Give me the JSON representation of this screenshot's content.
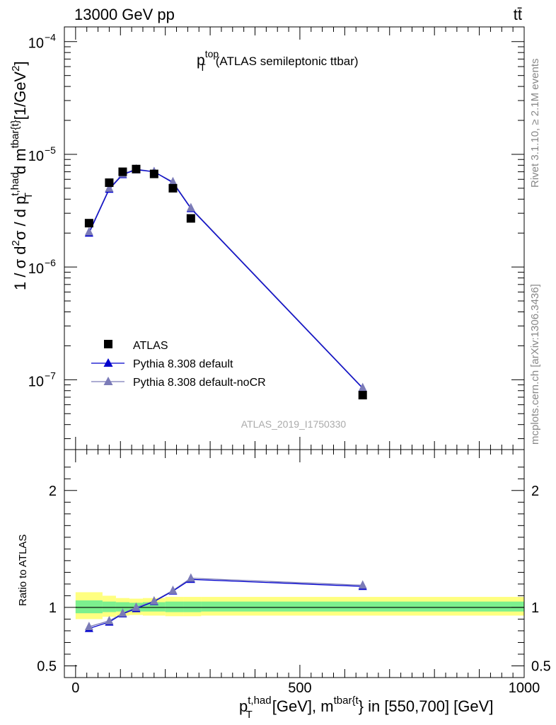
{
  "header": {
    "energy_label": "13000 GeV pp",
    "process_label": "tt̄"
  },
  "side": {
    "rivet_label": "Rivet 3.1.10, ≥ 2.1M events",
    "mcplots_label": "mcplots.cern.ch [arXiv:1306.3436]"
  },
  "chart_data": [
    {
      "type": "line",
      "title_main": "p",
      "title_sup": "top",
      "title_sub": "T",
      "title_rest": "(ATLAS semileptonic ttbar)",
      "watermark": "ATLAS_2019_I1750330",
      "ylabel": {
        "base": "1 / σ d",
        "s1": "2",
        "mid1": "σ / d p",
        "sup2": "t,had",
        "sub2": "T",
        "mid2": "d m",
        "sup3": "tbar{t}",
        "unit": "[1/GeV",
        "unit_sup": "2",
        "close": "]"
      },
      "yscale": "log",
      "xlim": [
        -25,
        1000
      ],
      "ylim": [
        2.4e-08,
        0.000135
      ],
      "y_tick_labels": [
        {
          "value": 1e-07,
          "mant": "10",
          "exp": "−7"
        },
        {
          "value": 1e-06,
          "mant": "10",
          "exp": "−6"
        },
        {
          "value": 1e-05,
          "mant": "10",
          "exp": "−5"
        },
        {
          "value": 0.0001,
          "mant": "10",
          "exp": "−4"
        }
      ],
      "legend": {
        "placement": "bottom-left",
        "entries": [
          "ATLAS",
          "Pythia 8.308 default",
          "Pythia 8.308 default-noCR"
        ]
      },
      "series": [
        {
          "name": "ATLAS",
          "marker": "square",
          "color": "#000000",
          "x": [
            30,
            75,
            105,
            135,
            175,
            217,
            257,
            640
          ],
          "y": [
            2.45e-06,
            5.6e-06,
            7e-06,
            7.4e-06,
            6.7e-06,
            5e-06,
            2.7e-06,
            7.3e-08
          ]
        },
        {
          "name": "Pythia 8.308 default",
          "marker": "triangle",
          "color": "#0000cc",
          "x": [
            30,
            75,
            105,
            135,
            175,
            217,
            257,
            640
          ],
          "y": [
            2e-06,
            4.9e-06,
            6.6e-06,
            7.3e-06,
            7e-06,
            5.6e-06,
            3.3e-06,
            8.4e-08
          ]
        },
        {
          "name": "Pythia 8.308 default-noCR",
          "marker": "triangle",
          "color": "#7b7bb8",
          "x": [
            30,
            75,
            105,
            135,
            175,
            217,
            257,
            640
          ],
          "y": [
            2.05e-06,
            5e-06,
            6.7e-06,
            7.4e-06,
            7e-06,
            5.7e-06,
            3.35e-06,
            8.5e-08
          ]
        }
      ]
    },
    {
      "type": "line",
      "ylabel": "Ratio to ATLAS",
      "xlabel": {
        "p": "p",
        "sup1": "t,had",
        "sub1": "T",
        "mid": "[GeV], m",
        "sup2": "tbar{t",
        "rest": "} in [550,700] [GeV]"
      },
      "xlim": [
        -25,
        1000
      ],
      "ylim": [
        0.4,
        2.35
      ],
      "x_tick_labels": [
        "0",
        "500",
        "1000"
      ],
      "x_tick_values": [
        0,
        500,
        1000
      ],
      "y_tick_labels": [
        "0.5",
        "1",
        "2"
      ],
      "y_tick_values": [
        0.5,
        1,
        2
      ],
      "reference_line": 1,
      "bands": {
        "yellow_color": "#ffff80",
        "green_color": "#7cf08e",
        "bins": [
          {
            "x0": 0,
            "x1": 60,
            "lo_y": 0.9,
            "hi_y": 1.13,
            "lo_g": 0.95,
            "hi_g": 1.06
          },
          {
            "x0": 60,
            "x1": 90,
            "lo_y": 0.92,
            "hi_y": 1.1,
            "lo_g": 0.96,
            "hi_g": 1.05
          },
          {
            "x0": 90,
            "x1": 120,
            "lo_y": 0.93,
            "hi_y": 1.08,
            "lo_g": 0.965,
            "hi_g": 1.045
          },
          {
            "x0": 120,
            "x1": 150,
            "lo_y": 0.935,
            "hi_y": 1.075,
            "lo_g": 0.965,
            "hi_g": 1.04
          },
          {
            "x0": 150,
            "x1": 200,
            "lo_y": 0.93,
            "hi_y": 1.08,
            "lo_g": 0.965,
            "hi_g": 1.045
          },
          {
            "x0": 200,
            "x1": 240,
            "lo_y": 0.925,
            "hi_y": 1.09,
            "lo_g": 0.96,
            "hi_g": 1.05
          },
          {
            "x0": 240,
            "x1": 280,
            "lo_y": 0.925,
            "hi_y": 1.09,
            "lo_g": 0.96,
            "hi_g": 1.05
          },
          {
            "x0": 280,
            "x1": 1000,
            "lo_y": 0.93,
            "hi_y": 1.09,
            "lo_g": 0.965,
            "hi_g": 1.05
          }
        ]
      },
      "series": [
        {
          "name": "Pythia 8.308 default",
          "marker": "triangle",
          "color": "#0000cc",
          "x": [
            30,
            75,
            105,
            135,
            175,
            217,
            257,
            640
          ],
          "y": [
            0.82,
            0.875,
            0.945,
            0.99,
            1.05,
            1.14,
            1.24,
            1.18
          ]
        },
        {
          "name": "Pythia 8.308 default-noCR",
          "marker": "triangle",
          "color": "#7b7bb8",
          "x": [
            30,
            75,
            105,
            135,
            175,
            217,
            257,
            640
          ],
          "y": [
            0.835,
            0.885,
            0.95,
            1.0,
            1.055,
            1.145,
            1.25,
            1.19
          ]
        }
      ]
    }
  ]
}
